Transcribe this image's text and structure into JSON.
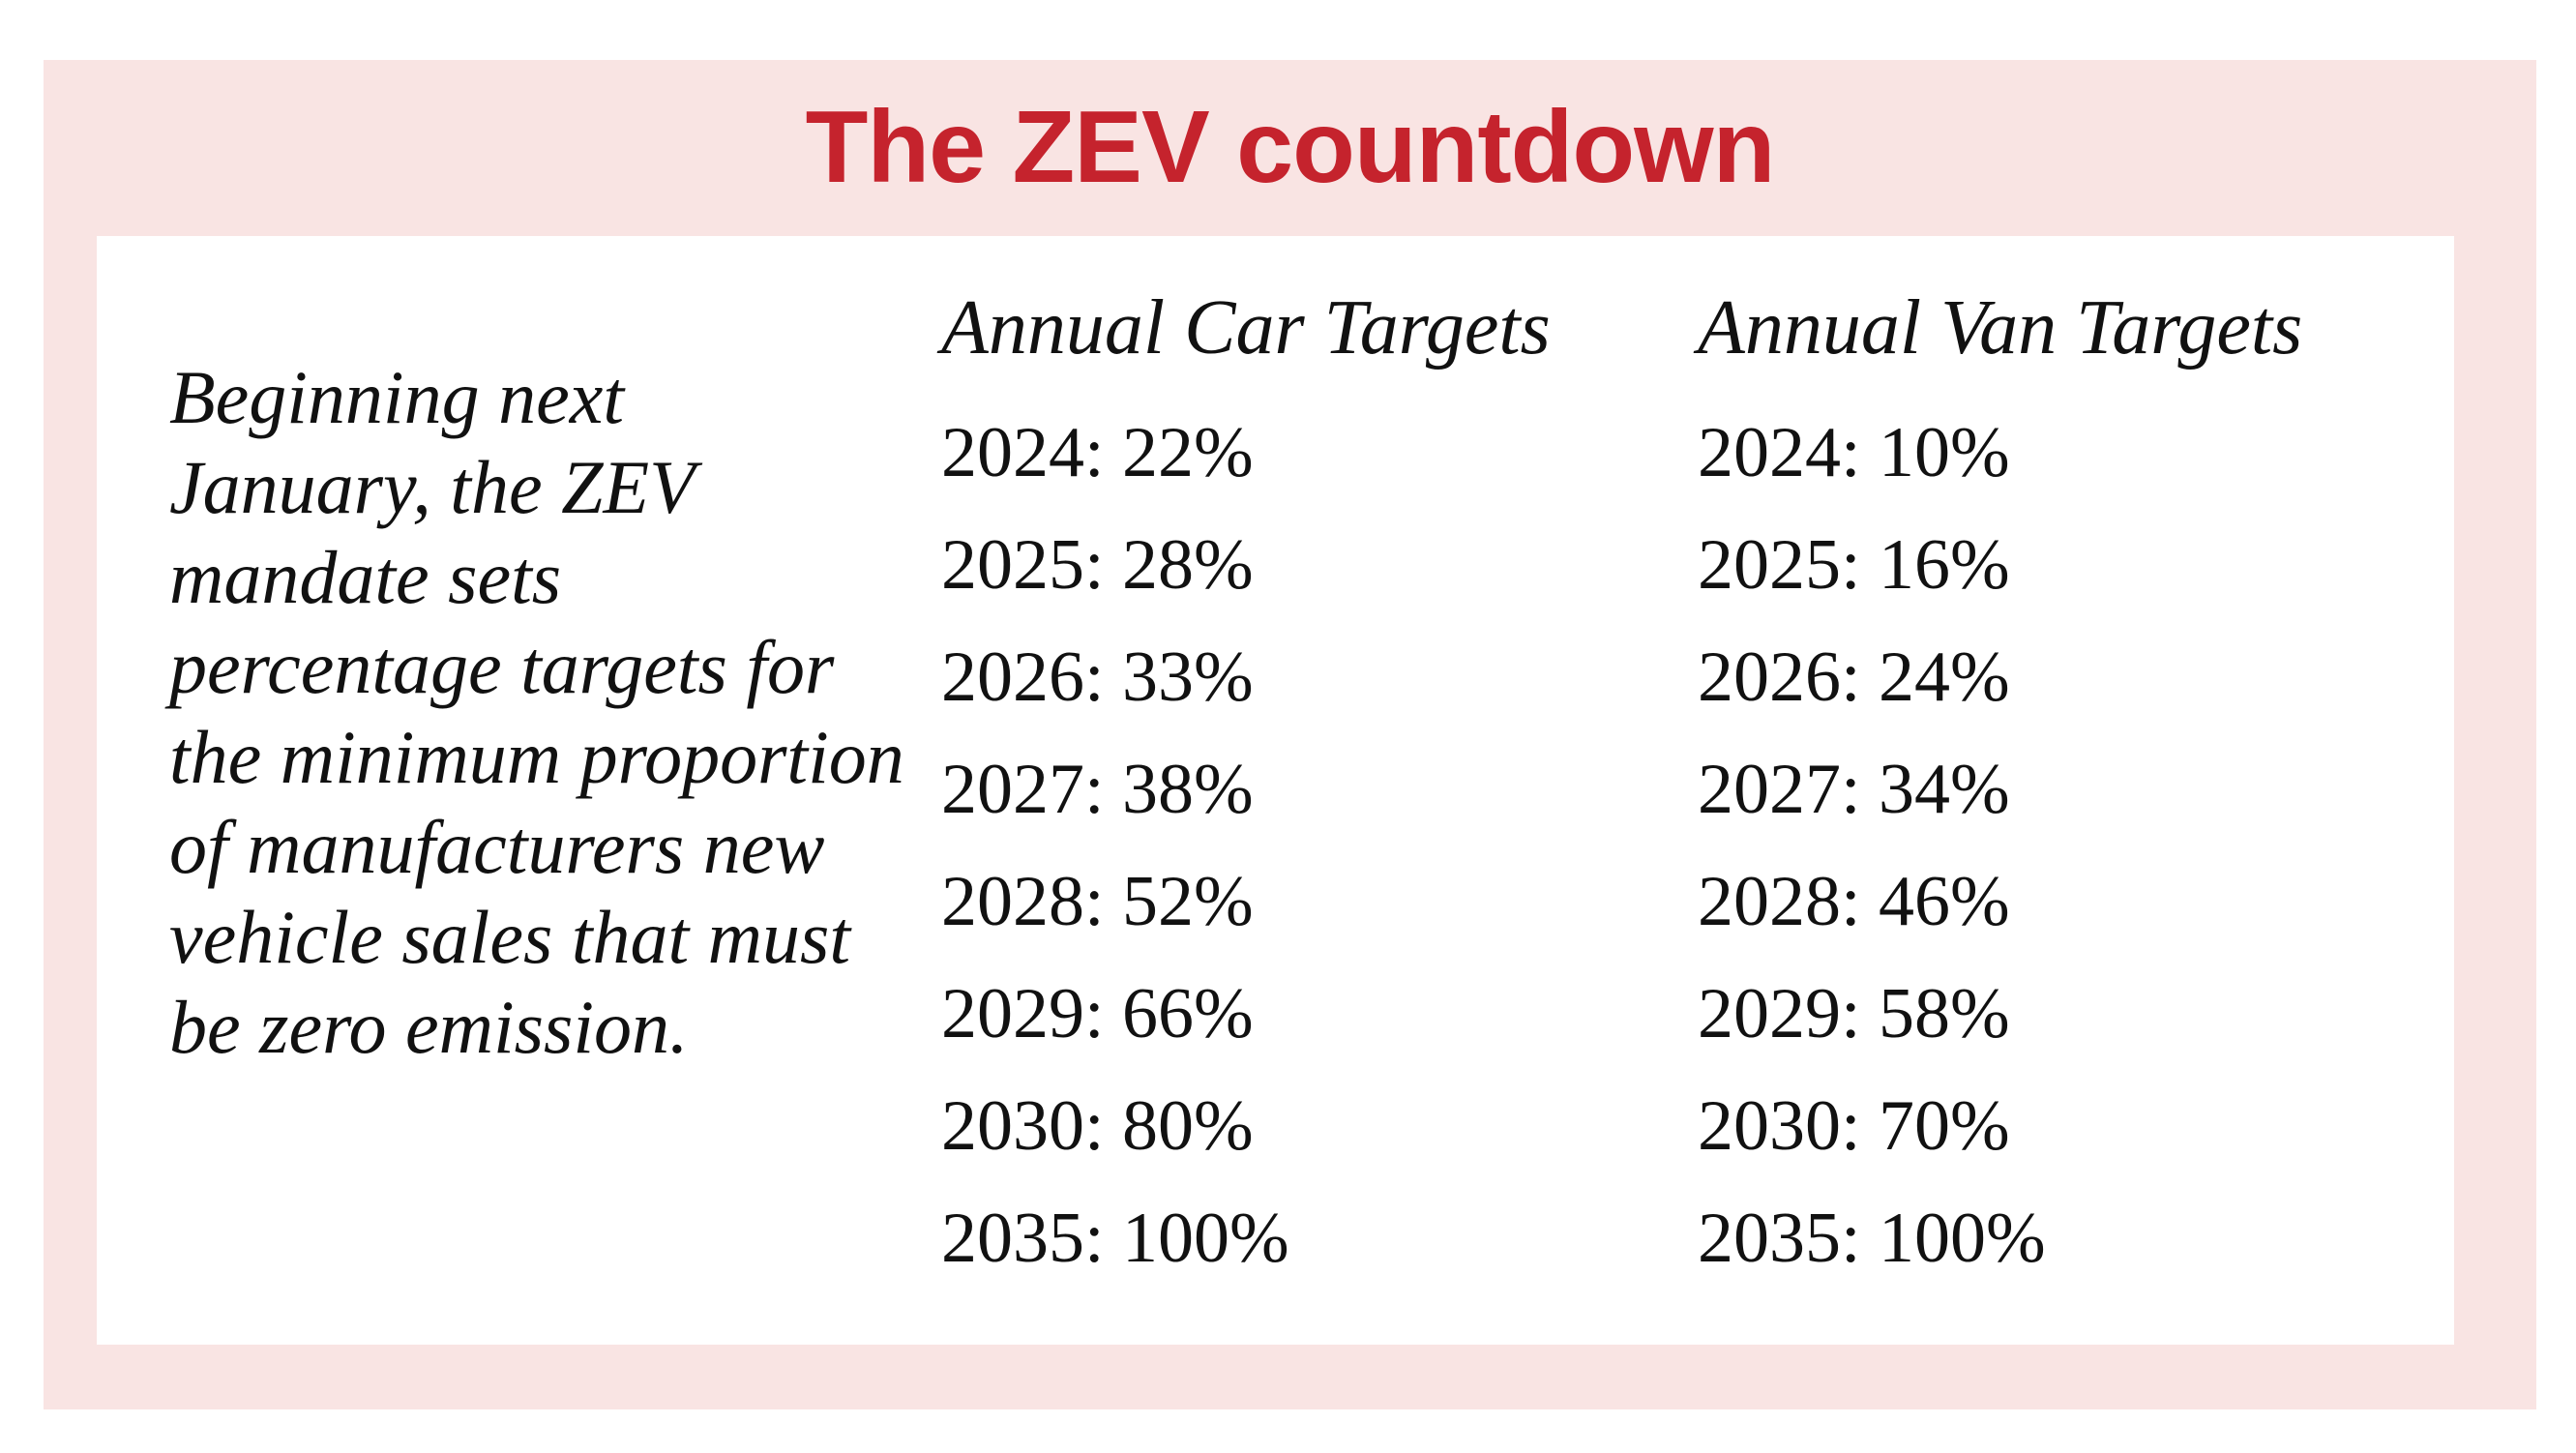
{
  "title": "The ZEV countdown",
  "description": "Beginning next January, the ZEV mandate sets percentage targets for the minimum proportion of manufacturers new vehicle sales that must be zero emission.",
  "colors": {
    "title": "#c5232d",
    "panel_background": "#f9e4e3",
    "card_background": "#ffffff"
  },
  "cars": {
    "header": "Annual Car Targets",
    "rows": [
      "2024: 22%",
      "2025: 28%",
      "2026: 33%",
      "2027: 38%",
      "2028: 52%",
      "2029: 66%",
      "2030: 80%",
      "2035: 100%"
    ]
  },
  "vans": {
    "header": "Annual Van Targets",
    "rows": [
      "2024: 10%",
      "2025: 16%",
      "2026: 24%",
      "2027: 34%",
      "2028: 46%",
      "2029: 58%",
      "2030: 70%",
      "2035: 100%"
    ]
  }
}
